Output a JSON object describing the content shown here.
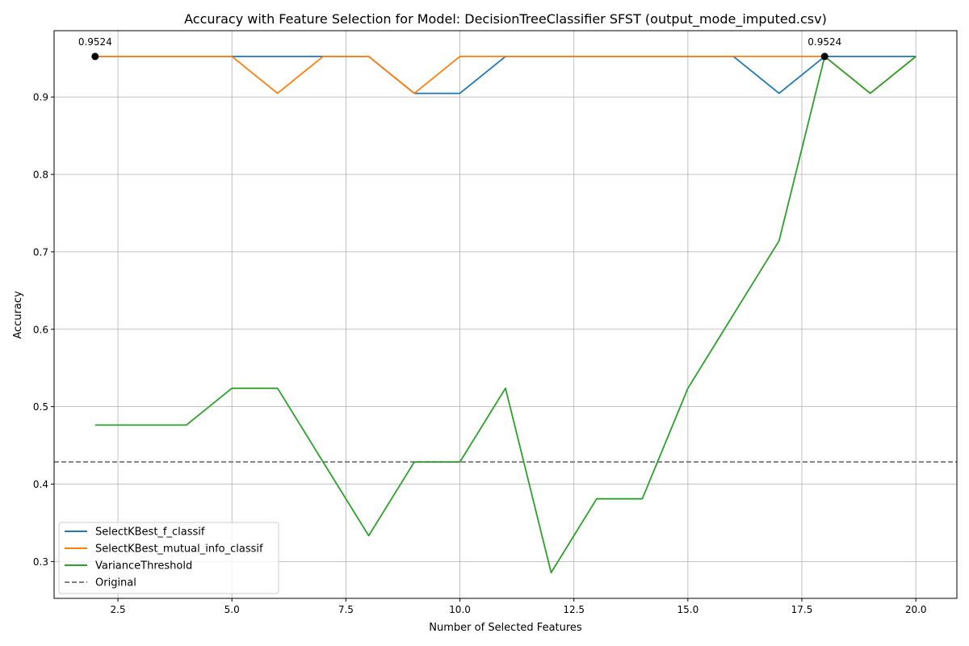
{
  "chart_data": {
    "type": "line",
    "title": "Accuracy with Feature Selection for Model: DecisionTreeClassifier SFST (output_mode_imputed.csv)",
    "xlabel": "Number of Selected Features",
    "ylabel": "Accuracy",
    "xlim": [
      1.1,
      20.9
    ],
    "ylim": [
      0.2524,
      0.9857
    ],
    "x_ticks": [
      2.5,
      5.0,
      7.5,
      10.0,
      12.5,
      15.0,
      17.5,
      20.0
    ],
    "x_tick_labels": [
      "2.5",
      "5.0",
      "7.5",
      "10.0",
      "12.5",
      "15.0",
      "17.5",
      "20.0"
    ],
    "y_ticks": [
      0.3,
      0.4,
      0.5,
      0.6,
      0.7,
      0.8,
      0.9
    ],
    "y_tick_labels": [
      "0.3",
      "0.4",
      "0.5",
      "0.6",
      "0.7",
      "0.8",
      "0.9"
    ],
    "grid": true,
    "legend_position": "lower-left",
    "x": [
      2,
      3,
      4,
      5,
      6,
      7,
      8,
      9,
      10,
      11,
      12,
      13,
      14,
      15,
      16,
      17,
      18,
      19,
      20
    ],
    "series": [
      {
        "name": "SelectKBest_f_classif",
        "color": "#1f77b4",
        "values": [
          0.9524,
          0.9524,
          0.9524,
          0.9524,
          0.9524,
          0.9524,
          0.9524,
          0.9048,
          0.9048,
          0.9524,
          0.9524,
          0.9524,
          0.9524,
          0.9524,
          0.9524,
          0.9048,
          0.9524,
          0.9524,
          0.9524
        ]
      },
      {
        "name": "SelectKBest_mutual_info_classif",
        "color": "#ff7f0e",
        "values": [
          0.9524,
          0.9524,
          0.9524,
          0.9524,
          0.9048,
          0.9524,
          0.9524,
          0.9048,
          0.9524,
          0.9524,
          0.9524,
          0.9524,
          0.9524,
          0.9524,
          0.9524,
          0.9524,
          0.9524,
          0.9048,
          0.9524
        ]
      },
      {
        "name": "VarianceThreshold",
        "color": "#2ca02c",
        "values": [
          0.4762,
          0.4762,
          0.4762,
          0.5238,
          0.5238,
          0.4286,
          0.3333,
          0.4286,
          0.4286,
          0.5238,
          0.2857,
          0.381,
          0.381,
          0.5238,
          0.619,
          0.7143,
          0.9524,
          0.9048,
          0.9524
        ]
      }
    ],
    "reference_line": {
      "name": "Original",
      "y": 0.4286,
      "color": "#808080",
      "style": "dashed"
    },
    "best_points": [
      {
        "x": 2,
        "y": 0.9524,
        "label": "0.9524"
      },
      {
        "x": 18,
        "y": 0.9524,
        "label": "0.9524"
      }
    ]
  }
}
